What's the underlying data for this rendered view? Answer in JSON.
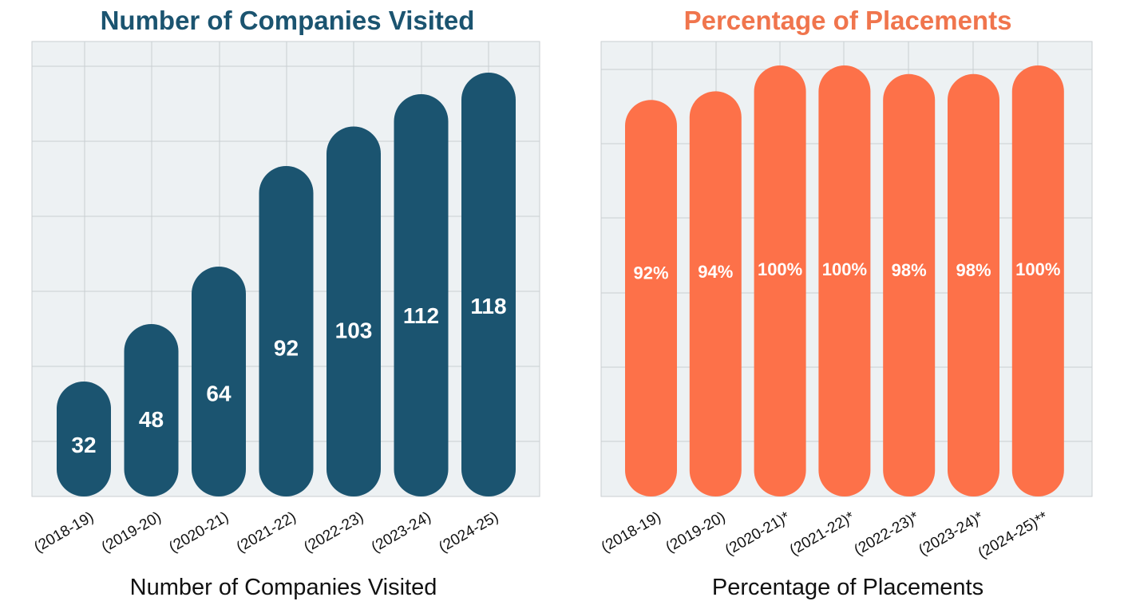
{
  "chart_data": [
    {
      "type": "bar",
      "title": "Number of Companies Visited",
      "xlabel": "Number of Companies Visited",
      "ylabel": "",
      "categories": [
        "(2018-19)",
        "(2019-20)",
        "(2020-21)",
        "(2021-22)",
        "(2022-23)",
        "(2023-24)",
        "(2024-25)"
      ],
      "values": [
        32,
        48,
        64,
        92,
        103,
        112,
        118
      ],
      "value_labels": [
        "32",
        "48",
        "64",
        "92",
        "103",
        "112",
        "118"
      ],
      "ylim": [
        0,
        120
      ],
      "grid": true,
      "color": "#1b5470",
      "title_color": "#1b5470"
    },
    {
      "type": "bar",
      "title": "Percentage of Placements",
      "xlabel": "Percentage of Placements",
      "ylabel": "",
      "categories": [
        "(2018-19)",
        "(2019-20)",
        "(2020-21)*",
        "(2021-22)*",
        "(2022-23)*",
        "(2023-24)*",
        "(2024-25)**"
      ],
      "values": [
        92,
        94,
        100,
        100,
        98,
        98,
        100
      ],
      "value_labels": [
        "92%",
        "94%",
        "100%",
        "100%",
        "98%",
        "98%",
        "100%"
      ],
      "ylim": [
        0,
        100
      ],
      "grid": true,
      "color": "#fd7149",
      "title_color": "#f0754d"
    }
  ]
}
